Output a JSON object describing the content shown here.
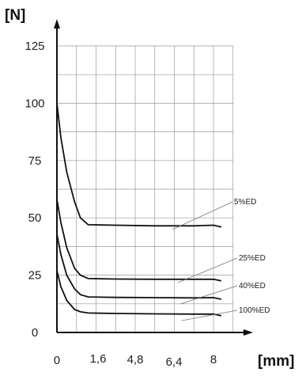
{
  "chart_data": {
    "type": "line",
    "ylabel": "[N]",
    "xlabel": "[mm]",
    "y_ticks": [
      "0",
      "25",
      "50",
      "75",
      "100",
      "125"
    ],
    "x_ticks": [
      "0",
      "1,6",
      "4,8",
      "6,4",
      "8"
    ],
    "ylim": [
      0,
      125
    ],
    "xlim": [
      0,
      9
    ],
    "grid": true,
    "series": [
      {
        "name": "5%ED",
        "x": [
          0,
          0.2,
          0.5,
          0.9,
          1.2,
          1.6,
          3.0,
          5.0,
          7.0,
          8.0,
          8.4
        ],
        "y": [
          100,
          85,
          70,
          57,
          50,
          47,
          46.8,
          46.5,
          46.5,
          46.8,
          46
        ]
      },
      {
        "name": "25%ED",
        "x": [
          0,
          0.2,
          0.5,
          0.9,
          1.2,
          1.6,
          3.0,
          5.0,
          7.0,
          8.0,
          8.4
        ],
        "y": [
          58,
          48,
          37,
          28,
          25,
          23.5,
          23.3,
          23.2,
          23.2,
          23.2,
          22.5
        ]
      },
      {
        "name": "40%ED",
        "x": [
          0,
          0.2,
          0.5,
          0.9,
          1.2,
          1.6,
          3.0,
          5.0,
          7.0,
          8.0,
          8.4
        ],
        "y": [
          43,
          34,
          25,
          19,
          16.5,
          15.5,
          15.3,
          15.2,
          15.1,
          15.2,
          14.5
        ]
      },
      {
        "name": "100%ED",
        "x": [
          0,
          0.2,
          0.5,
          0.9,
          1.2,
          1.6,
          3.0,
          5.0,
          7.0,
          8.0,
          8.4
        ],
        "y": [
          27,
          20,
          14,
          10,
          9,
          8.5,
          8.3,
          8.1,
          8.0,
          8.0,
          7.3
        ]
      }
    ]
  }
}
